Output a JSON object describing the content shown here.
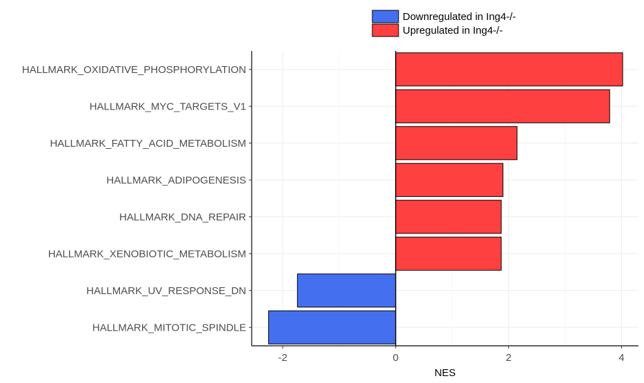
{
  "chart_data": {
    "type": "bar",
    "orientation": "horizontal",
    "categories": [
      "HALLMARK_OXIDATIVE_PHOSPHORYLATION",
      "HALLMARK_MYC_TARGETS_V1",
      "HALLMARK_FATTY_ACID_METABOLISM",
      "HALLMARK_ADIPOGENESIS",
      "HALLMARK_DNA_REPAIR",
      "HALLMARK_XENOBIOTIC_METABOLISM",
      "HALLMARK_UV_RESPONSE_DN",
      "HALLMARK_MITOTIC_SPINDLE"
    ],
    "values": [
      4.02,
      3.79,
      2.15,
      1.9,
      1.87,
      1.87,
      -1.74,
      -2.25
    ],
    "groups": [
      "Upregulated in Ing4-/-",
      "Upregulated in Ing4-/-",
      "Upregulated in Ing4-/-",
      "Upregulated in Ing4-/-",
      "Upregulated in Ing4-/-",
      "Upregulated in Ing4-/-",
      "Downregulated in Ing4-/-",
      "Downregulated in Ing4-/-"
    ],
    "xlabel": "NES",
    "ylabel": "",
    "title": "",
    "xlim": [
      -2.55,
      4.3
    ],
    "xticks": [
      -2,
      0,
      2,
      4
    ],
    "grid": true,
    "legend": {
      "placement": "top",
      "entries": [
        {
          "label": "Downregulated in Ing4-/-",
          "color": "#4470f0"
        },
        {
          "label": "Upregulated in Ing4-/-",
          "color": "#ff4040"
        }
      ]
    },
    "colors": {
      "Downregulated in Ing4-/-": "#4470f0",
      "Upregulated in Ing4-/-": "#ff4040"
    }
  }
}
